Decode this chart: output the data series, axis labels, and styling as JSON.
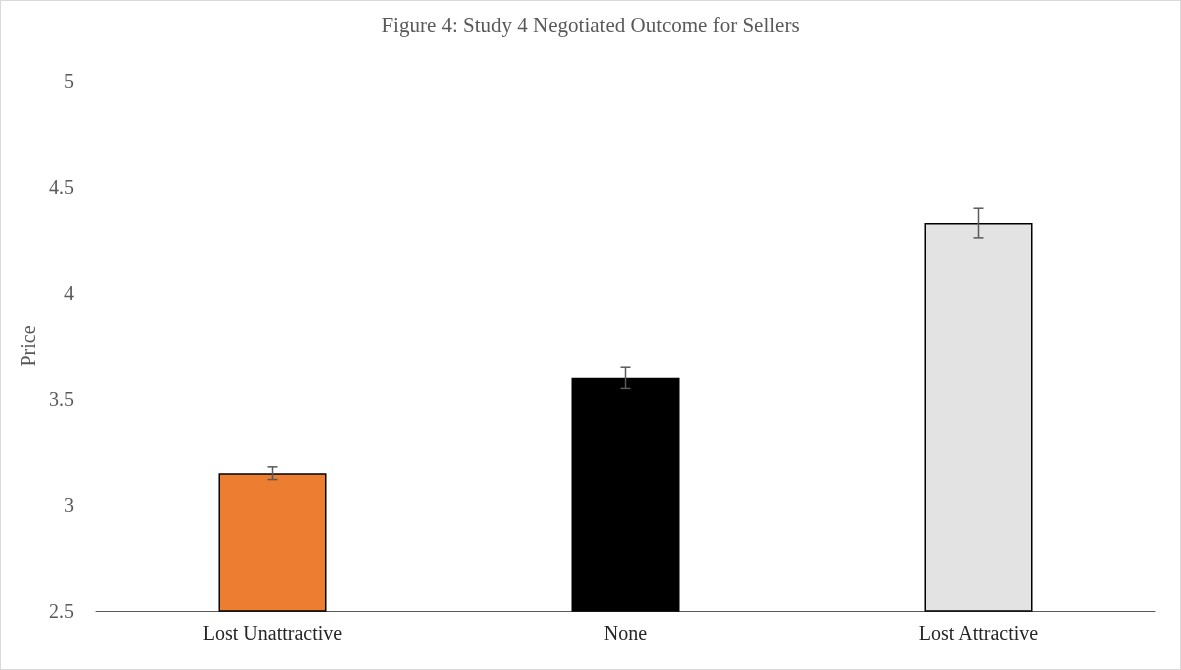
{
  "chart_data": {
    "type": "bar",
    "title": "Figure 4: Study 4 Negotiated Outcome for Sellers",
    "ylabel": "Price",
    "categories": [
      "Lost Unattractive",
      "None",
      "Lost Attractive"
    ],
    "values": [
      3.15,
      3.6,
      4.33
    ],
    "colors": [
      "#ed7d31",
      "#000000",
      "#e3e3e3"
    ],
    "errors": [
      0.03,
      0.05,
      0.07
    ],
    "ylim": [
      2.5,
      5
    ],
    "yticks": [
      2.5,
      3,
      3.5,
      4,
      4.5,
      5
    ],
    "grid": false
  }
}
